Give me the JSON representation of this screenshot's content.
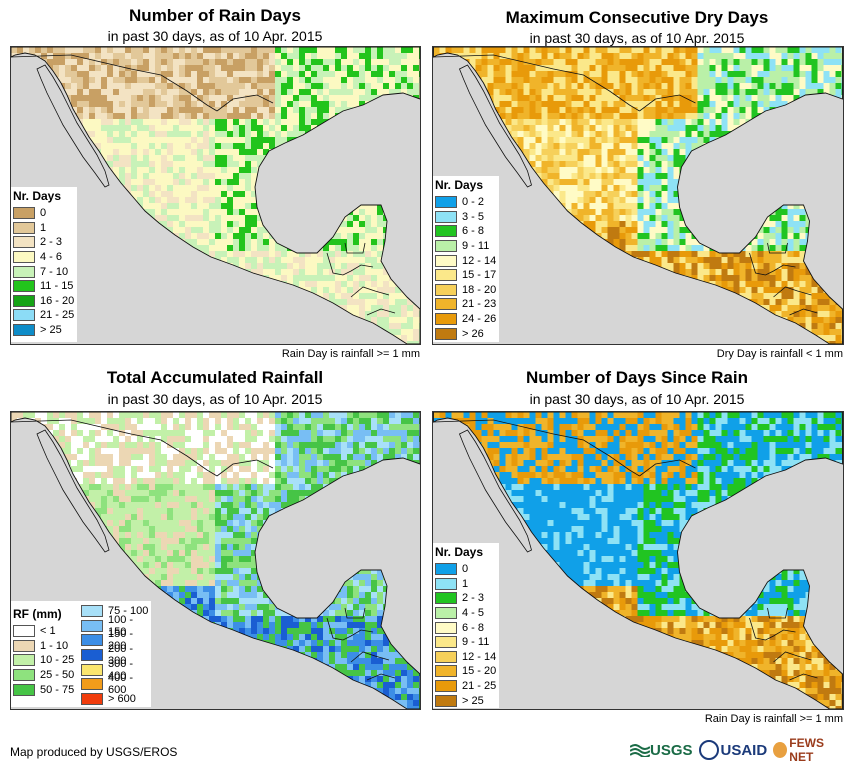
{
  "panels": [
    {
      "title": "Number of Rain Days",
      "subtitle": "in past 30 days, as of 10 Apr. 2015",
      "note": "Rain Day is rainfall >= 1 mm",
      "legend_title": "Nr. Days",
      "legend": [
        {
          "label": "0",
          "color": "#c8a064"
        },
        {
          "label": "1",
          "color": "#e2c899"
        },
        {
          "label": "2 - 3",
          "color": "#f3e3c3"
        },
        {
          "label": "4 - 6",
          "color": "#fcf9c2"
        },
        {
          "label": "7 - 10",
          "color": "#c8f2b8"
        },
        {
          "label": "11 - 15",
          "color": "#22c41c"
        },
        {
          "label": "16 - 20",
          "color": "#16a416"
        },
        {
          "label": "21 - 25",
          "color": "#8cdcf6"
        },
        {
          "label": "> 25",
          "color": "#0e8cc8"
        }
      ]
    },
    {
      "title": "Maximum Consecutive Dry Days",
      "subtitle": "in past 30 days, as of 10 Apr. 2015",
      "note": "Dry Day is rainfall < 1 mm",
      "legend_title": "Nr. Days",
      "legend": [
        {
          "label": "0 - 2",
          "color": "#10a0e8"
        },
        {
          "label": "3 - 5",
          "color": "#8ee2f5"
        },
        {
          "label": "6 - 8",
          "color": "#21c421"
        },
        {
          "label": "9 - 11",
          "color": "#baf0a8"
        },
        {
          "label": "12 - 14",
          "color": "#fffbc6"
        },
        {
          "label": "15 - 17",
          "color": "#fbe88a"
        },
        {
          "label": "18 - 20",
          "color": "#f6d05a"
        },
        {
          "label": "21 - 23",
          "color": "#f0b42a"
        },
        {
          "label": "24 - 26",
          "color": "#e89a0a"
        },
        {
          "label": "> 26",
          "color": "#c07a10"
        }
      ]
    },
    {
      "title": "Total Accumulated Rainfall",
      "subtitle": "in past 30 days, as of 10 Apr. 2015",
      "note": "",
      "legend_title": "RF (mm)",
      "legend": [
        {
          "label": "< 1",
          "color": "#ffffff"
        },
        {
          "label": "1 - 10",
          "color": "#ecd7b4"
        },
        {
          "label": "10 - 25",
          "color": "#c2f0a8"
        },
        {
          "label": "25 - 50",
          "color": "#8ee27e"
        },
        {
          "label": "50 - 75",
          "color": "#46c446"
        }
      ],
      "legend2": [
        {
          "label": "75 - 100",
          "color": "#a8e0f8"
        },
        {
          "label": "100 - 150",
          "color": "#78bef4"
        },
        {
          "label": "150 - 200",
          "color": "#3c8ee6"
        },
        {
          "label": "200 - 300",
          "color": "#1a5ed2"
        },
        {
          "label": "300 - 400",
          "color": "#fbe66e"
        },
        {
          "label": "400 - 600",
          "color": "#f29c1a"
        },
        {
          "label": "> 600",
          "color": "#f03c0c"
        }
      ]
    },
    {
      "title": "Number of Days Since Rain",
      "subtitle": "in past 30 days, as of 10 Apr. 2015",
      "note": "Rain Day is rainfall >= 1 mm",
      "legend_title": "Nr. Days",
      "legend": [
        {
          "label": "0",
          "color": "#10a0e8"
        },
        {
          "label": "1",
          "color": "#8ee2f5"
        },
        {
          "label": "2 - 3",
          "color": "#21c421"
        },
        {
          "label": "4 - 5",
          "color": "#baf0a8"
        },
        {
          "label": "6 - 8",
          "color": "#fffbc6"
        },
        {
          "label": "9 - 11",
          "color": "#fbe88a"
        },
        {
          "label": "12 - 14",
          "color": "#f6d05a"
        },
        {
          "label": "15 - 20",
          "color": "#f0b42a"
        },
        {
          "label": "21 - 25",
          "color": "#e89a0a"
        },
        {
          "label": "> 25",
          "color": "#c07a10"
        }
      ]
    }
  ],
  "map_colors": {
    "ocean": "#d6d6d6",
    "border": "#111111"
  },
  "footer": "Map produced by USGS/EROS",
  "logos": {
    "usgs": "USGS",
    "usaid": "USAID",
    "fews": "FEWS NET"
  }
}
